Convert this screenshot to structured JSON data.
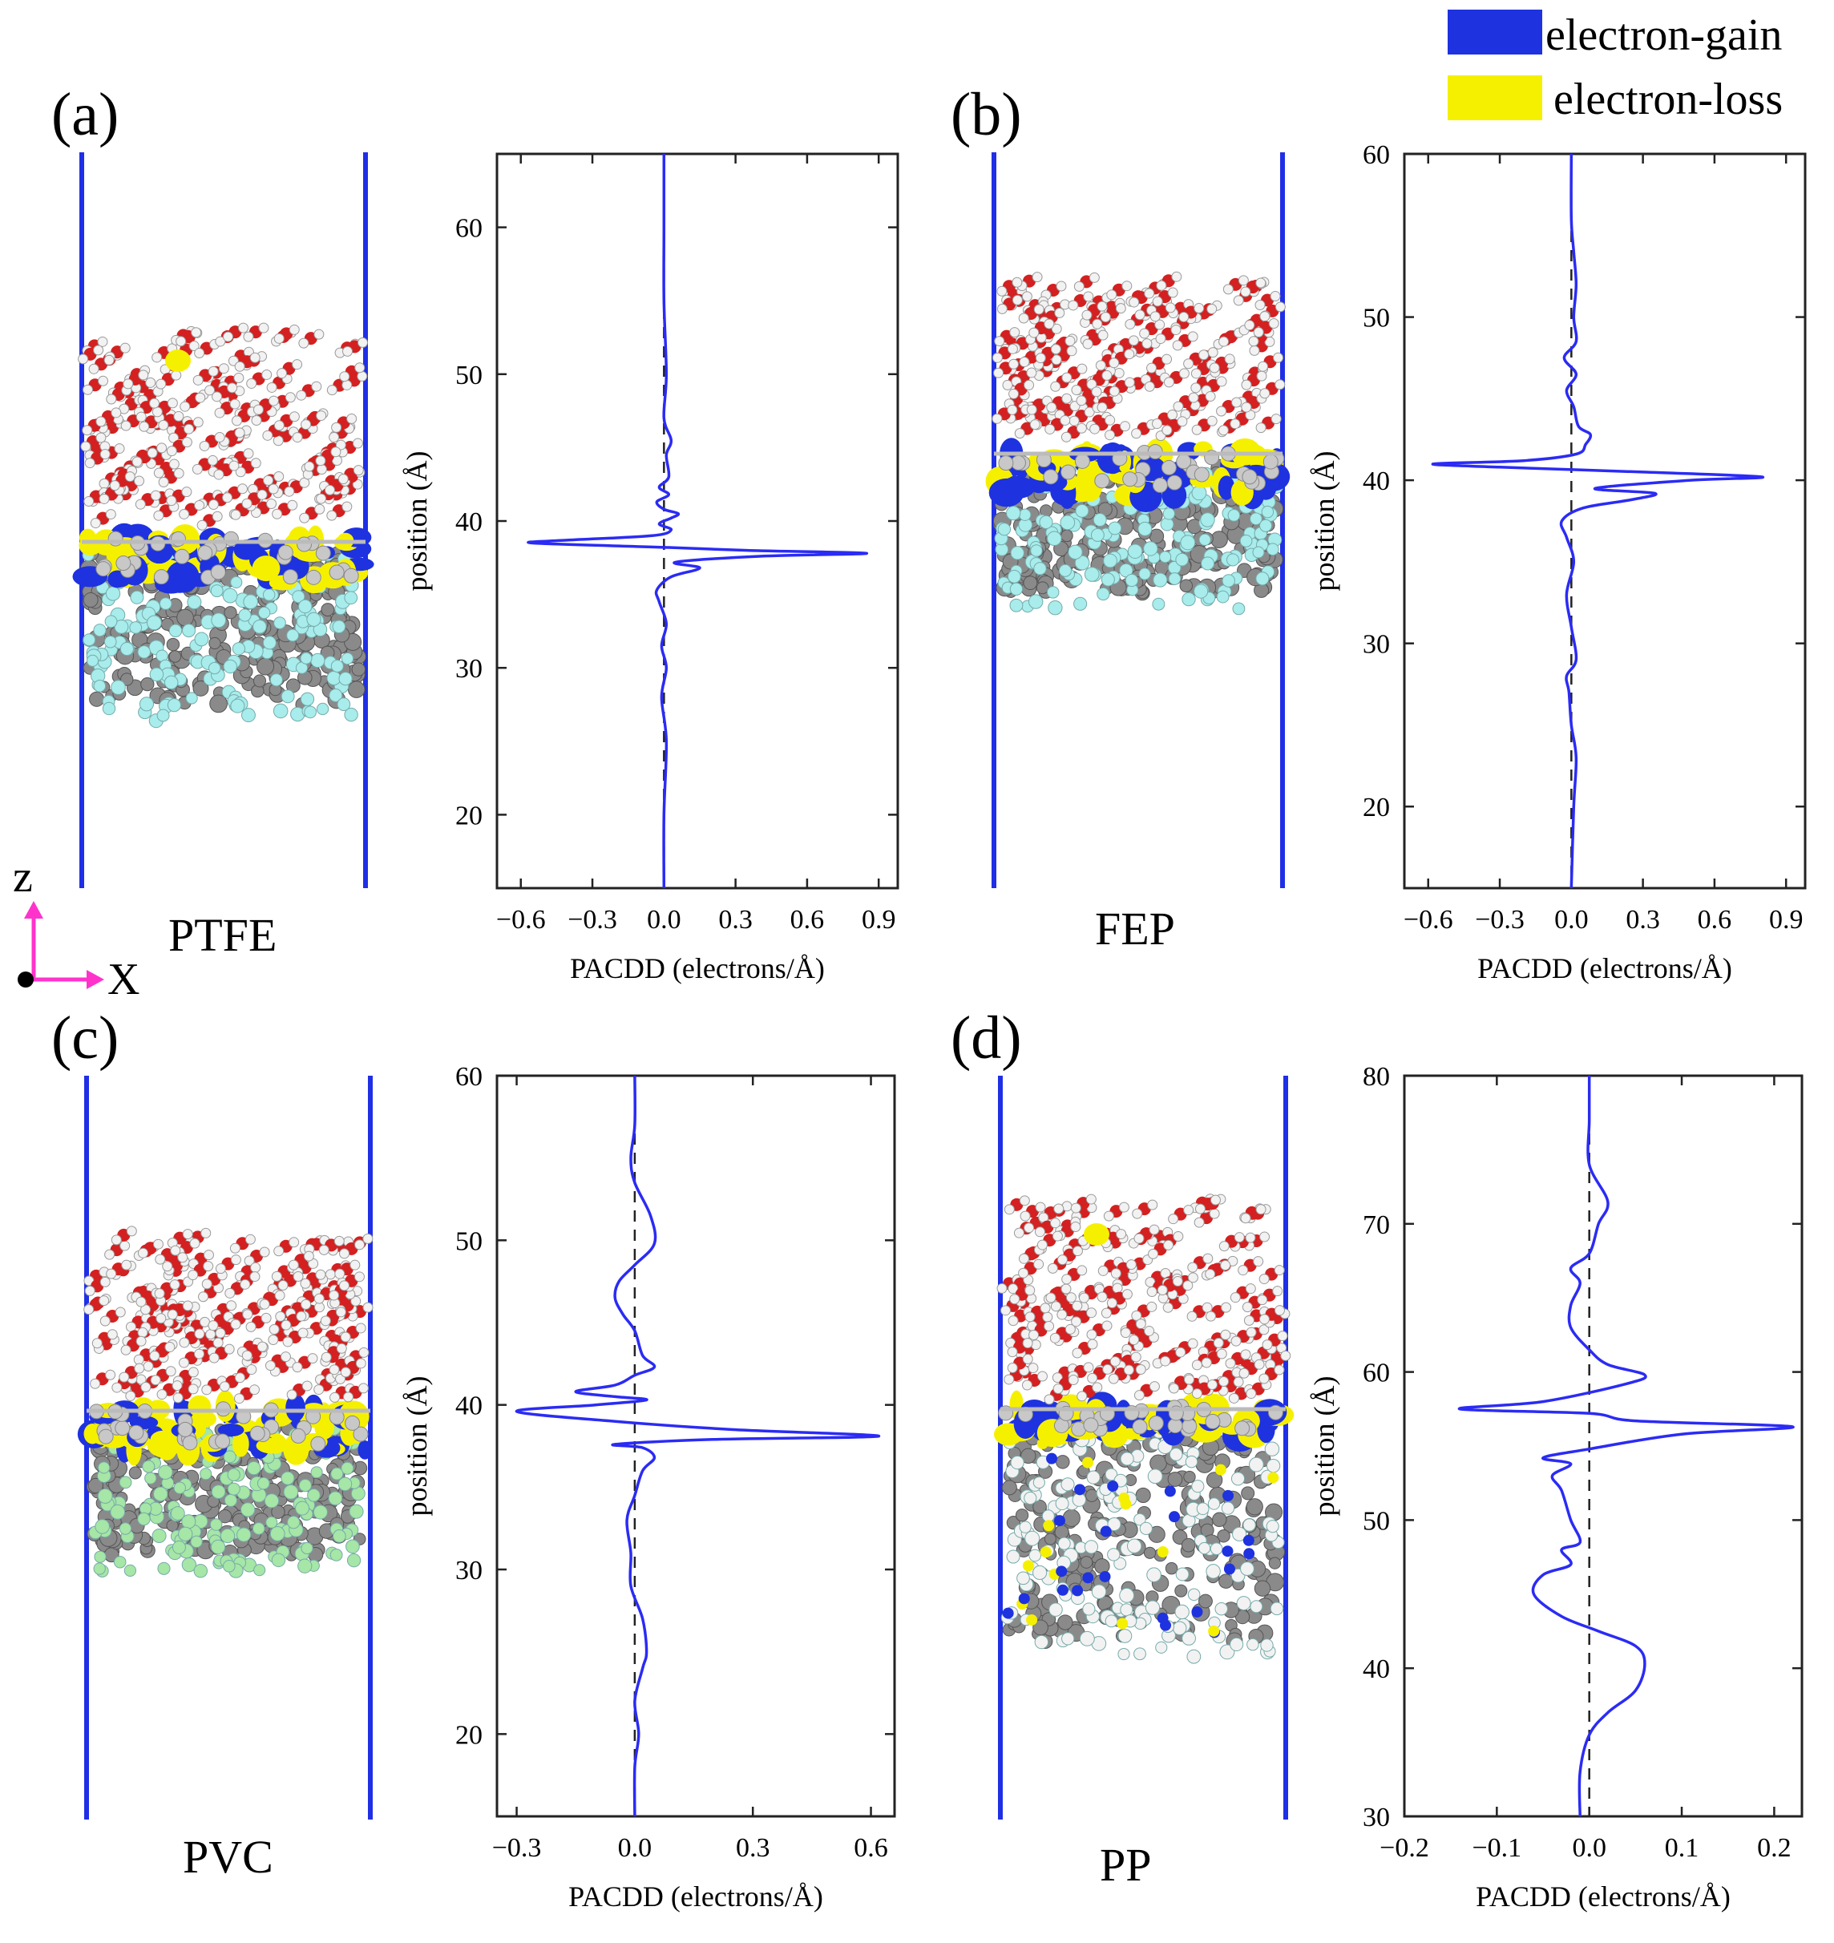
{
  "legend": {
    "items": [
      {
        "label": "electron-gain",
        "color": "#1e32e0"
      },
      {
        "label": "electron-loss",
        "color": "#f5f000"
      }
    ]
  },
  "axes_indicator": {
    "z_label": "z",
    "x_label": "X",
    "color": "#ff33cc"
  },
  "colors": {
    "curve": "#2b2bf5",
    "boundary": "#1f2fe6",
    "oxygen": "#d42020",
    "hydrogen": "#f2f2f2",
    "carbon": "#8a8a8a",
    "fluorine": "#a8ecec",
    "chlorine": "#a6e6a6",
    "gain": "#1e32e0",
    "loss": "#f5f000"
  },
  "panels": [
    {
      "id": "a",
      "label": "(a)",
      "material": "PTFE"
    },
    {
      "id": "b",
      "label": "(b)",
      "material": "FEP"
    },
    {
      "id": "c",
      "label": "(c)",
      "material": "PVC"
    },
    {
      "id": "d",
      "label": "(d)",
      "material": "PP"
    }
  ],
  "chart_data": [
    {
      "panel": "a",
      "type": "line",
      "xlabel": "PACDD (electrons/Å)",
      "ylabel": "position (Å)",
      "xlim": [
        -0.7,
        0.98
      ],
      "ylim": [
        15,
        65
      ],
      "xticks": [
        -0.6,
        -0.3,
        0.0,
        0.3,
        0.6,
        0.9
      ],
      "xticklabels": [
        "−0.6",
        "−0.3",
        "0.0",
        "0.3",
        "0.6",
        "0.9"
      ],
      "yticks": [
        20,
        30,
        40,
        50,
        60
      ],
      "yticklabels": [
        "20",
        "30",
        "40",
        "50",
        "60"
      ],
      "reference_line_x": 0,
      "series": [
        {
          "name": "PACDD",
          "points": [
            [
              0.0,
              15
            ],
            [
              0.0,
              20
            ],
            [
              0.01,
              25
            ],
            [
              -0.01,
              28
            ],
            [
              0.01,
              30
            ],
            [
              -0.01,
              31.5
            ],
            [
              0.01,
              33
            ],
            [
              -0.02,
              34.5
            ],
            [
              -0.03,
              35.3
            ],
            [
              0.03,
              36.2
            ],
            [
              0.15,
              36.8
            ],
            [
              0.05,
              37.2
            ],
            [
              0.4,
              37.6
            ],
            [
              0.85,
              37.8
            ],
            [
              0.35,
              38.0
            ],
            [
              0.02,
              38.2
            ],
            [
              -0.55,
              38.5
            ],
            [
              -0.4,
              38.7
            ],
            [
              -0.05,
              39.0
            ],
            [
              0.03,
              39.4
            ],
            [
              -0.02,
              39.8
            ],
            [
              0.03,
              40.2
            ],
            [
              0.06,
              40.5
            ],
            [
              0.0,
              40.8
            ],
            [
              -0.03,
              41.3
            ],
            [
              0.02,
              41.8
            ],
            [
              -0.02,
              42.3
            ],
            [
              0.02,
              43.0
            ],
            [
              0.01,
              44.5
            ],
            [
              0.03,
              45.5
            ],
            [
              0.0,
              47.0
            ],
            [
              0.01,
              50
            ],
            [
              0.0,
              55
            ],
            [
              0.0,
              60
            ],
            [
              0.0,
              65
            ]
          ]
        }
      ]
    },
    {
      "panel": "b",
      "type": "line",
      "xlabel": "PACDD (electrons/Å)",
      "ylabel": "position (Å)",
      "xlim": [
        -0.7,
        0.98
      ],
      "ylim": [
        15,
        60
      ],
      "xticks": [
        -0.6,
        -0.3,
        0.0,
        0.3,
        0.6,
        0.9
      ],
      "xticklabels": [
        "−0.6",
        "−0.3",
        "0.0",
        "0.3",
        "0.6",
        "0.9"
      ],
      "yticks": [
        20,
        30,
        40,
        50,
        60
      ],
      "yticklabels": [
        "20",
        "30",
        "40",
        "50",
        "60"
      ],
      "reference_line_x": 0,
      "series": [
        {
          "name": "PACDD",
          "points": [
            [
              0.0,
              15
            ],
            [
              0.01,
              20
            ],
            [
              0.02,
              23
            ],
            [
              0.0,
              25
            ],
            [
              -0.01,
              27
            ],
            [
              -0.02,
              28
            ],
            [
              0.02,
              29
            ],
            [
              0.0,
              31
            ],
            [
              -0.02,
              33
            ],
            [
              0.01,
              35
            ],
            [
              -0.02,
              36.5
            ],
            [
              -0.04,
              37.5
            ],
            [
              0.05,
              38.3
            ],
            [
              0.25,
              38.8
            ],
            [
              0.35,
              39.2
            ],
            [
              0.1,
              39.5
            ],
            [
              0.5,
              40.0
            ],
            [
              0.8,
              40.2
            ],
            [
              0.3,
              40.5
            ],
            [
              -0.3,
              40.8
            ],
            [
              -0.58,
              41.0
            ],
            [
              -0.2,
              41.2
            ],
            [
              0.02,
              41.6
            ],
            [
              0.06,
              42.2
            ],
            [
              0.08,
              42.8
            ],
            [
              0.03,
              43.3
            ],
            [
              0.01,
              44.5
            ],
            [
              -0.02,
              45.5
            ],
            [
              0.02,
              46.5
            ],
            [
              -0.03,
              47.5
            ],
            [
              0.02,
              48.5
            ],
            [
              0.01,
              50
            ],
            [
              0.02,
              52
            ],
            [
              0.01,
              54
            ],
            [
              0.0,
              56
            ],
            [
              0.0,
              60
            ]
          ]
        }
      ]
    },
    {
      "panel": "c",
      "type": "line",
      "xlabel": "PACDD (electrons/Å)",
      "ylabel": "position (Å)",
      "xlim": [
        -0.35,
        0.66
      ],
      "ylim": [
        15,
        60
      ],
      "xticks": [
        -0.3,
        0.0,
        0.3,
        0.6
      ],
      "xticklabels": [
        "−0.3",
        "0.0",
        "0.3",
        "0.6"
      ],
      "yticks": [
        20,
        30,
        40,
        50,
        60
      ],
      "yticklabels": [
        "20",
        "30",
        "40",
        "50",
        "60"
      ],
      "reference_line_x": 0,
      "series": [
        {
          "name": "PACDD",
          "points": [
            [
              0.0,
              15
            ],
            [
              0.0,
              18
            ],
            [
              0.01,
              20
            ],
            [
              0.0,
              22
            ],
            [
              0.02,
              24
            ],
            [
              0.03,
              25
            ],
            [
              0.02,
              27
            ],
            [
              -0.01,
              29
            ],
            [
              -0.01,
              31
            ],
            [
              -0.02,
              33
            ],
            [
              0.0,
              34.5
            ],
            [
              0.02,
              36
            ],
            [
              0.05,
              36.8
            ],
            [
              0.02,
              37.4
            ],
            [
              -0.05,
              37.6
            ],
            [
              0.2,
              37.9
            ],
            [
              0.62,
              38.1
            ],
            [
              0.25,
              38.5
            ],
            [
              -0.05,
              39.0
            ],
            [
              -0.3,
              39.6
            ],
            [
              -0.1,
              40.0
            ],
            [
              0.03,
              40.3
            ],
            [
              -0.05,
              40.5
            ],
            [
              -0.15,
              40.8
            ],
            [
              -0.05,
              41.2
            ],
            [
              0.0,
              41.8
            ],
            [
              0.05,
              42.3
            ],
            [
              0.02,
              43.0
            ],
            [
              0.0,
              44.5
            ],
            [
              -0.03,
              45.5
            ],
            [
              -0.05,
              46.5
            ],
            [
              -0.04,
              47.5
            ],
            [
              0.0,
              48.5
            ],
            [
              0.05,
              49.8
            ],
            [
              0.04,
              51.5
            ],
            [
              0.0,
              53.5
            ],
            [
              -0.01,
              55
            ],
            [
              0.0,
              57
            ],
            [
              0.0,
              60
            ]
          ]
        }
      ]
    },
    {
      "panel": "d",
      "type": "line",
      "xlabel": "PACDD (electrons/Å)",
      "ylabel": "position (Å)",
      "xlim": [
        -0.2,
        0.23
      ],
      "ylim": [
        30,
        80
      ],
      "xticks": [
        -0.2,
        -0.1,
        0.0,
        0.1,
        0.2
      ],
      "xticklabels": [
        "−0.2",
        "−0.1",
        "0.0",
        "0.1",
        "0.2"
      ],
      "yticks": [
        30,
        40,
        50,
        60,
        70,
        80
      ],
      "yticklabels": [
        "30",
        "40",
        "50",
        "60",
        "70",
        "80"
      ],
      "reference_line_x": 0,
      "series": [
        {
          "name": "PACDD",
          "points": [
            [
              -0.01,
              30
            ],
            [
              -0.01,
              33
            ],
            [
              0.0,
              35.5
            ],
            [
              0.02,
              37
            ],
            [
              0.05,
              38.5
            ],
            [
              0.06,
              40.3
            ],
            [
              0.05,
              41.5
            ],
            [
              0.01,
              42.5
            ],
            [
              -0.03,
              43.5
            ],
            [
              -0.06,
              45
            ],
            [
              -0.05,
              46.3
            ],
            [
              -0.02,
              47
            ],
            [
              -0.03,
              48
            ],
            [
              -0.01,
              48.5
            ],
            [
              -0.02,
              50
            ],
            [
              -0.03,
              52
            ],
            [
              -0.04,
              53
            ],
            [
              -0.02,
              53.8
            ],
            [
              -0.05,
              54.2
            ],
            [
              0.0,
              54.8
            ],
            [
              0.1,
              55.8
            ],
            [
              0.22,
              56.3
            ],
            [
              0.05,
              56.7
            ],
            [
              0.0,
              57.2
            ],
            [
              -0.14,
              57.5
            ],
            [
              -0.05,
              58.0
            ],
            [
              0.04,
              59.2
            ],
            [
              0.06,
              59.8
            ],
            [
              0.02,
              60.5
            ],
            [
              0.0,
              61.5
            ],
            [
              -0.02,
              63
            ],
            [
              -0.02,
              64.5
            ],
            [
              -0.01,
              66
            ],
            [
              -0.02,
              67
            ],
            [
              0.0,
              68
            ],
            [
              0.01,
              70
            ],
            [
              0.02,
              71.5
            ],
            [
              0.0,
              74
            ],
            [
              0.0,
              77
            ],
            [
              0.0,
              80
            ]
          ]
        }
      ]
    }
  ]
}
